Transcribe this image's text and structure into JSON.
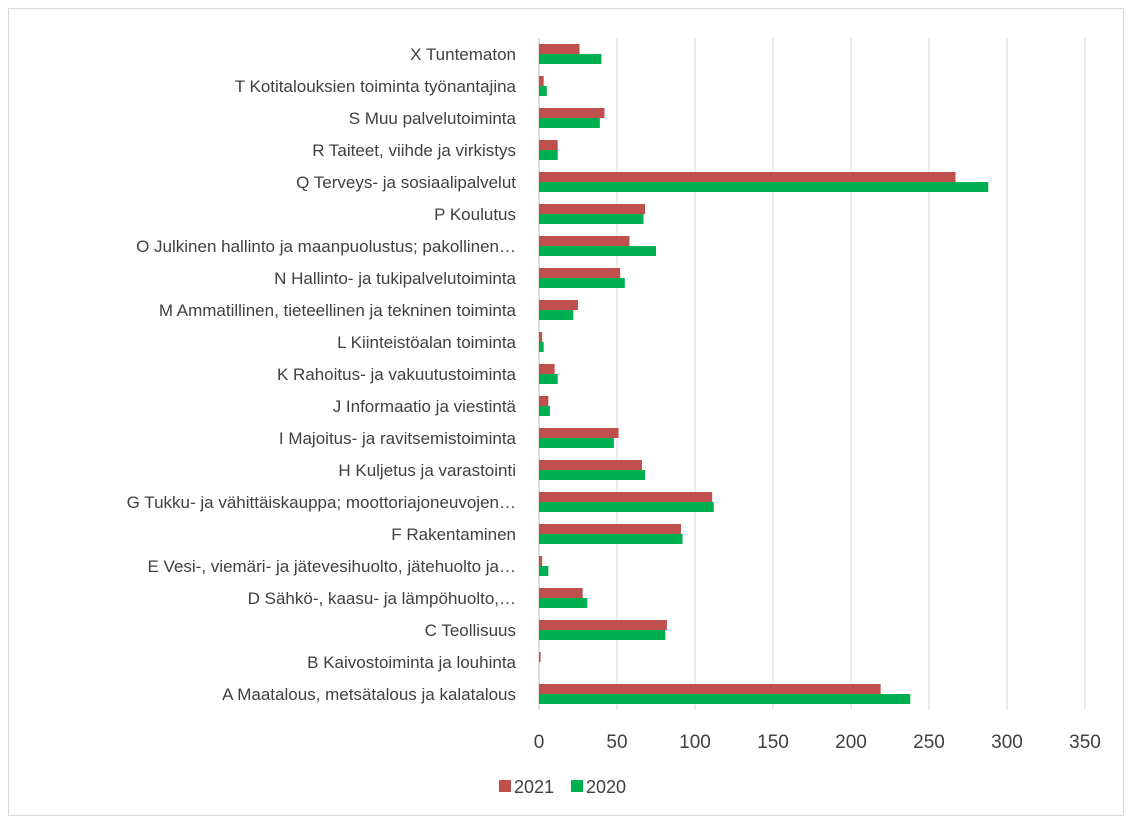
{
  "chart_data": {
    "type": "bar",
    "orientation": "horizontal",
    "title": "",
    "xlabel": "",
    "ylabel": "",
    "xlim": [
      0,
      350
    ],
    "xticks": [
      0,
      50,
      100,
      150,
      200,
      250,
      300,
      350
    ],
    "grid": "vertical",
    "legend_position": "bottom",
    "categories": [
      "X Tuntematon",
      "T Kotitalouksien toiminta työnantajina",
      "S Muu palvelutoiminta",
      "R Taiteet, viihde ja virkistys",
      "Q Terveys- ja sosiaalipalvelut",
      "P Koulutus",
      "O Julkinen hallinto ja maanpuolustus; pakollinen…",
      "N Hallinto- ja tukipalvelutoiminta",
      "M Ammatillinen, tieteellinen ja tekninen toiminta",
      "L Kiinteistöalan toiminta",
      "K Rahoitus- ja vakuutustoiminta",
      "J Informaatio ja viestintä",
      "I Majoitus- ja ravitsemistoiminta",
      "H Kuljetus ja varastointi",
      "G Tukku- ja vähittäiskauppa; moottoriajoneuvojen…",
      "F Rakentaminen",
      "E Vesi-, viemäri- ja jätevesihuolto, jätehuolto ja…",
      "D Sähkö-, kaasu- ja lämpöhuolto,…",
      "C Teollisuus",
      "B Kaivostoiminta ja louhinta",
      "A Maatalous, metsätalous ja kalatalous"
    ],
    "series": [
      {
        "name": "2021",
        "color": "#c0504d",
        "values": [
          26,
          3,
          42,
          12,
          267,
          68,
          58,
          52,
          25,
          2,
          10,
          6,
          51,
          66,
          111,
          91,
          2,
          28,
          82,
          1,
          219
        ]
      },
      {
        "name": "2020",
        "color": "#00b050",
        "values": [
          40,
          5,
          39,
          12,
          288,
          67,
          75,
          55,
          22,
          3,
          12,
          7,
          48,
          68,
          112,
          92,
          6,
          31,
          81,
          0,
          238
        ]
      }
    ]
  }
}
